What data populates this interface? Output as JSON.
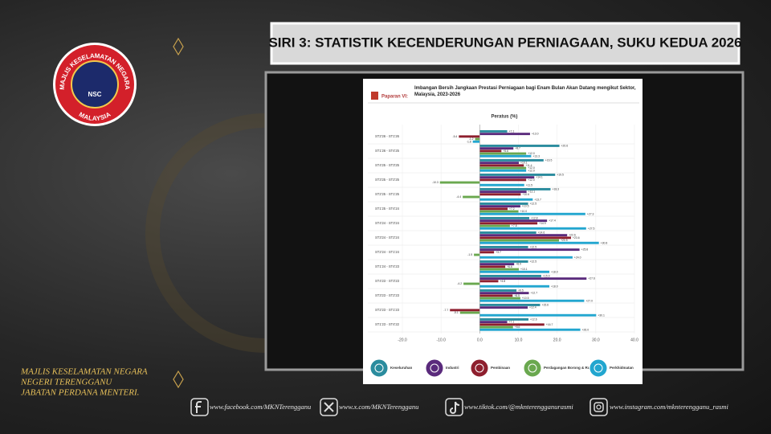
{
  "banner": "SIRI 3: STATISTIK KECENDERUNGAN PERNIAGAAN, SUKU KEDUA 2026",
  "logo": {
    "top": "MAJLIS KESELAMATAN NEGARA",
    "center": "NSC",
    "bottom": "MALAYSIA"
  },
  "agency": [
    "MAJLIS KESELAMATAN NEGARA",
    "NEGERI TERENGGANU",
    "JABATAN PERDANA MENTERI."
  ],
  "social": [
    "www.facebook.com/MKNTerengganu",
    "www.x.com/MKNTerengganu",
    "www.tiktok.com/@mknterengganurasmi",
    "www.instagram.com/mknterengganu_rasmi"
  ],
  "chart_data": {
    "type": "hbar",
    "label": "Paparan VI:",
    "title": "Imbangan Bersih Jangkaan Prestasi Perniagaan bagi Enam Bulan Akan Datang mengikut Sektor, Malaysia, 2023-2026",
    "x_label": "Peratus (%)",
    "categories": [
      "ST2'26 - ST1'26",
      "ST1'26 - ST4'25",
      "ST4'25 - ST3'25",
      "ST3'25 - ST2'25",
      "ST2'25 - ST1'25",
      "ST1'25 - ST4'24",
      "ST4'24 - ST3'24",
      "ST3'24 - ST2'24",
      "ST2'24 - ST1'24",
      "ST1'24 - ST4'23",
      "ST4'23 - ST3'23",
      "ST3'23 - ST2'23",
      "ST2'23 - ST1'23",
      "ST1'23 - ST4'22"
    ],
    "xlim": [
      -20,
      40
    ],
    "xticks": [
      {
        "value": -20,
        "label": "-20.0"
      },
      {
        "value": -10,
        "label": "-10.0"
      },
      {
        "value": 0,
        "label": "0.0"
      },
      {
        "value": 10,
        "label": "10.0"
      },
      {
        "value": 20,
        "label": "20.0"
      },
      {
        "value": 30,
        "label": "30.0"
      },
      {
        "value": 40,
        "label": "40.0"
      }
    ],
    "series": [
      {
        "name": "Keseluruhan",
        "color": "#2b8c9e",
        "values": [
          7.1,
          20.6,
          16.5,
          19.5,
          18.3,
          12.5,
          12.8,
          14.6,
          12.5,
          12.5,
          15.9,
          9.5,
          15.6,
          12.6
        ],
        "value_labels": [
          "+7.1",
          "+20.6",
          "+16.5",
          "+19.5",
          "+18.3",
          "+12.5",
          "+12.8",
          "+14.6",
          "+12.5",
          "+12.5",
          "+15.9",
          "+9.5",
          "+15.6",
          "+12.6"
        ]
      },
      {
        "name": "Industri",
        "color": "#5a2a7c",
        "values": [
          13,
          8.7,
          10.1,
          14.1,
          12.1,
          10.5,
          17.4,
          22.6,
          25.8,
          8.9,
          27.6,
          12.7,
          12.4,
          7.1
        ],
        "value_labels": [
          "+13.0",
          "+8.7",
          "+10.1",
          "+14.1",
          "+12.1",
          "+10.5",
          "+17.4",
          "+22.6",
          "+25.8",
          "+8.9",
          "+27.6",
          "+12.7",
          "+12.4",
          "+7.1"
        ]
      },
      {
        "name": "Pembinaan",
        "color": "#8e1f2e",
        "values": [
          -5.4,
          5.6,
          11.4,
          12,
          10.6,
          7.2,
          14.9,
          23.6,
          3.7,
          6.6,
          4.8,
          8.5,
          -7.7,
          16.7
        ],
        "value_labels": [
          "-5.4",
          "+5.6",
          "+11.4",
          "+12.0",
          "+10.6",
          "+7.2",
          "+14.9",
          "+23.6",
          "+3.7",
          "+6.6",
          "+4.8",
          "+8.5",
          "-7.7",
          "+16.7"
        ]
      },
      {
        "name": "Perdagangan Borong & Runcit",
        "color": "#6aa84f",
        "values": [
          -1.2,
          12,
          12,
          -10.3,
          -4.4,
          10,
          7.8,
          20.5,
          -1.5,
          10.1,
          -4.2,
          10.5,
          -5.1,
          8.6
        ],
        "value_labels": [
          "-1.2",
          "+12.0",
          "+12.0",
          "-10.3",
          "-4.4",
          "+10.0",
          "+7.8",
          "+20.5",
          "-1.5",
          "+10.1",
          "-4.2",
          "+10.5",
          "-5.1",
          "+8.6"
        ]
      },
      {
        "name": "Perkhidmatan",
        "color": "#22a6cf",
        "values": [
          -1.8,
          13.3,
          12,
          11.5,
          13.7,
          27.3,
          27.5,
          30.8,
          24,
          18,
          18,
          27,
          30.1,
          26
        ],
        "value_labels": [
          "-1.8",
          "+13.3",
          "+12.0",
          "+11.5",
          "+13.7",
          "+27.3",
          "+27.5",
          "+30.8",
          "+24.0",
          "+18.0",
          "+18.0",
          "+27.0",
          "+30.1",
          "+26.0"
        ]
      }
    ]
  }
}
